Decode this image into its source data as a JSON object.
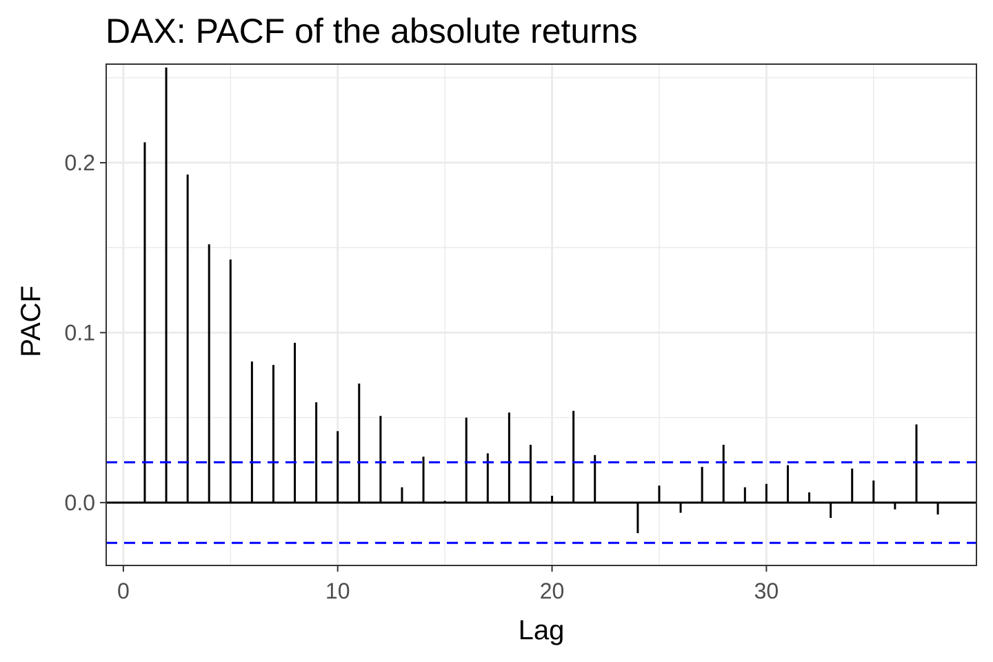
{
  "chart_data": {
    "type": "bar",
    "title": "DAX: PACF of the absolute returns",
    "xlabel": "Lag",
    "ylabel": "PACF",
    "xlim": [
      -0.8,
      39.8
    ],
    "ylim": [
      -0.037,
      0.258
    ],
    "x_ticks": [
      0,
      10,
      20,
      30
    ],
    "x_tick_labels": [
      "0",
      "10",
      "20",
      "30"
    ],
    "y_ticks": [
      0.0,
      0.1,
      0.2
    ],
    "y_tick_labels": [
      "0.0",
      "0.1",
      "0.2"
    ],
    "y_minor_ticks": [
      -0.05,
      0.05,
      0.15,
      0.25
    ],
    "x_minor_ticks": [
      5,
      15,
      25,
      35
    ],
    "grid": true,
    "confidence_bound": 0.0237,
    "colors": {
      "bars": "#000000",
      "bounds": "#0000ff",
      "grid": "#ebebeb",
      "panel_border": "#333333"
    },
    "x": [
      1,
      2,
      3,
      4,
      5,
      6,
      7,
      8,
      9,
      10,
      11,
      12,
      13,
      14,
      15,
      16,
      17,
      18,
      19,
      20,
      21,
      22,
      23,
      24,
      25,
      26,
      27,
      28,
      29,
      30,
      31,
      32,
      33,
      34,
      35,
      36,
      37,
      38
    ],
    "values": [
      0.212,
      0.256,
      0.193,
      0.152,
      0.143,
      0.083,
      0.081,
      0.094,
      0.059,
      0.042,
      0.07,
      0.051,
      0.009,
      0.027,
      0.001,
      0.05,
      0.029,
      0.053,
      0.034,
      0.004,
      0.054,
      0.028,
      0.0,
      -0.018,
      0.01,
      -0.006,
      0.021,
      0.034,
      0.009,
      0.011,
      0.022,
      0.006,
      -0.009,
      0.02,
      0.013,
      -0.004,
      0.046,
      -0.007
    ]
  }
}
